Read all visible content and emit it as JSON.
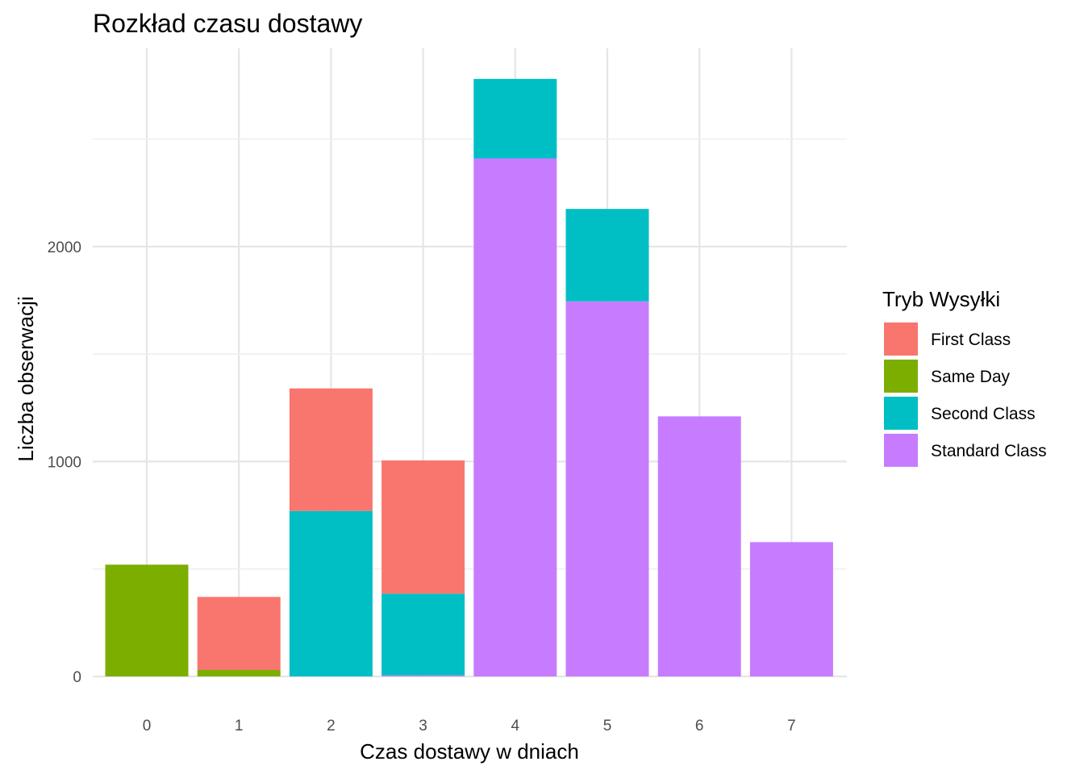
{
  "chart_data": {
    "type": "bar",
    "stacked": true,
    "title": "Rozkład czasu dostawy",
    "xlabel": "Czas dostawy w dniach",
    "ylabel": "Liczba obserwacji",
    "categories": [
      "0",
      "1",
      "2",
      "3",
      "4",
      "5",
      "6",
      "7"
    ],
    "y_ticks": [
      0,
      1000,
      2000
    ],
    "ylim": [
      0,
      2780
    ],
    "grid": true,
    "legend": {
      "title": "Tryb Wysyłki",
      "placement": "right"
    },
    "series": [
      {
        "name": "First Class",
        "color": "#F8766D",
        "values": [
          0,
          340,
          570,
          620,
          0,
          0,
          0,
          0
        ]
      },
      {
        "name": "Same Day",
        "color": "#7CAE00",
        "values": [
          520,
          30,
          0,
          0,
          0,
          0,
          0,
          0
        ]
      },
      {
        "name": "Second Class",
        "color": "#00BFC4",
        "values": [
          0,
          0,
          770,
          380,
          370,
          430,
          0,
          0
        ]
      },
      {
        "name": "Standard Class",
        "color": "#C77CFF",
        "values": [
          0,
          0,
          0,
          5,
          2410,
          1745,
          1210,
          625
        ]
      }
    ]
  }
}
